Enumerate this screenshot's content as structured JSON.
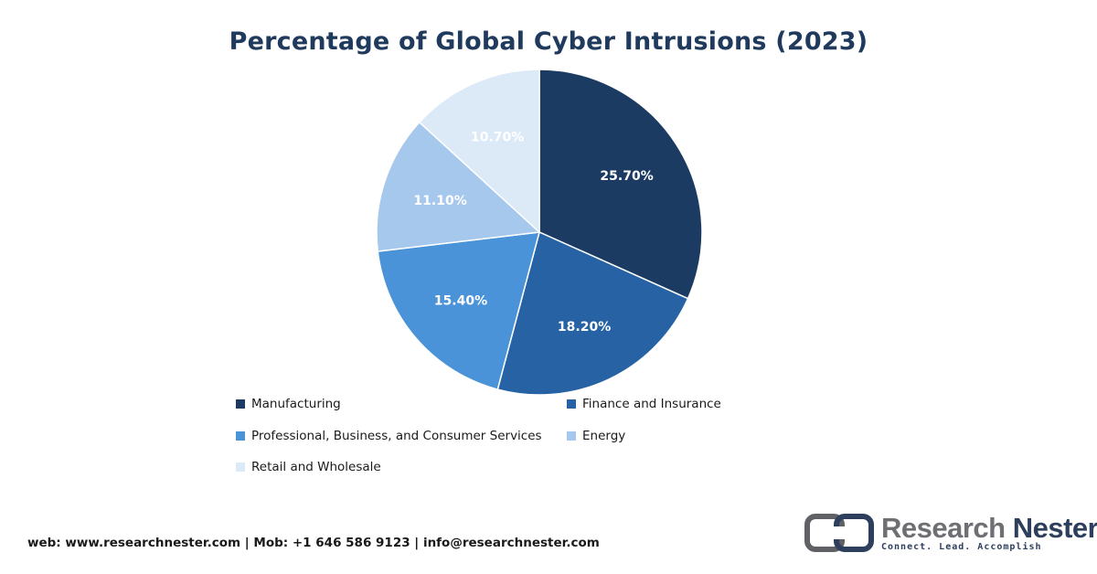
{
  "chart_data": {
    "type": "pie",
    "title": "Percentage of Global Cyber Intrusions (2023)",
    "series": [
      {
        "name": "Manufacturing",
        "value": 25.7,
        "label": "25.70%",
        "color": "#1b3b62"
      },
      {
        "name": "Finance and Insurance",
        "value": 18.2,
        "label": "18.20%",
        "color": "#2662a4"
      },
      {
        "name": "Professional, Business, and Consumer Services",
        "value": 15.4,
        "label": "15.40%",
        "color": "#4b93d9"
      },
      {
        "name": "Energy",
        "value": 11.1,
        "label": "11.10%",
        "color": "#a6c8ec"
      },
      {
        "name": "Retail and Wholesale",
        "value": 10.7,
        "label": "10.70%",
        "color": "#dce9f7"
      }
    ],
    "legend_position": "bottom"
  },
  "footer": {
    "contact": "web: www.researchnester.com | Mob: +1 646 586 9123 | info@researchnester.com"
  },
  "brand": {
    "name_part1": "Research",
    "name_part2": "Nester",
    "tagline": "Connect. Lead. Accomplish"
  }
}
